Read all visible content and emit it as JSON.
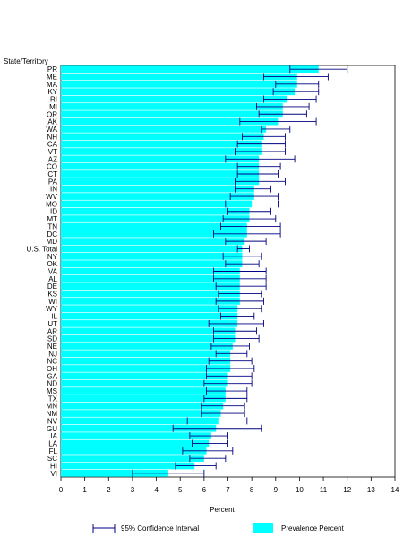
{
  "chart_data": {
    "type": "bar",
    "orientation": "horizontal",
    "category_axis_title": "State/Territory",
    "xlabel": "Percent",
    "xlim": [
      0,
      14
    ],
    "x_ticks": [
      "0",
      "1",
      "2",
      "3",
      "4",
      "5",
      "6",
      "7",
      "8",
      "9",
      "10",
      "11",
      "12",
      "13",
      "14"
    ],
    "bar_color": "#00ffff",
    "ci_color": "#000080",
    "legend": {
      "ci_label": "95% Confidence Interval",
      "bar_label": "Prevalence Percent",
      "placement": "bottom"
    },
    "categories": [
      "PR",
      "ME",
      "MA",
      "KY",
      "RI",
      "MI",
      "OR",
      "AK",
      "WA",
      "NH",
      "CA",
      "VT",
      "AZ",
      "CO",
      "CT",
      "PA",
      "IN",
      "WV",
      "MO",
      "ID",
      "MT",
      "TN",
      "DC",
      "MD",
      "U.S. Total",
      "NY",
      "OK",
      "VA",
      "AL",
      "DE",
      "KS",
      "WI",
      "WY",
      "IL",
      "UT",
      "AR",
      "SD",
      "NE",
      "NJ",
      "NC",
      "OH",
      "GA",
      "ND",
      "MS",
      "TX",
      "MN",
      "NM",
      "NV",
      "GU",
      "IA",
      "LA",
      "FL",
      "SC",
      "HI",
      "VI"
    ],
    "values": [
      10.8,
      9.9,
      9.9,
      9.8,
      9.5,
      9.3,
      9.3,
      9.1,
      8.6,
      8.5,
      8.4,
      8.4,
      8.3,
      8.3,
      8.3,
      8.3,
      8.1,
      8.1,
      8.0,
      7.9,
      7.9,
      7.8,
      7.8,
      7.7,
      7.6,
      7.6,
      7.6,
      7.5,
      7.5,
      7.5,
      7.5,
      7.5,
      7.4,
      7.4,
      7.4,
      7.3,
      7.3,
      7.2,
      7.1,
      7.1,
      7.1,
      7.0,
      7.0,
      6.9,
      6.9,
      6.8,
      6.7,
      6.6,
      6.5,
      6.3,
      6.2,
      6.1,
      6.0,
      5.6,
      4.5
    ],
    "ci_lower": [
      9.6,
      8.5,
      9.0,
      8.9,
      8.5,
      8.2,
      8.3,
      7.5,
      8.4,
      7.6,
      7.4,
      7.3,
      6.9,
      7.4,
      7.4,
      7.3,
      7.3,
      7.1,
      6.9,
      7.0,
      6.8,
      6.7,
      6.4,
      6.9,
      7.4,
      6.8,
      6.9,
      6.4,
      6.4,
      6.5,
      6.6,
      6.5,
      6.6,
      6.7,
      6.2,
      6.4,
      6.4,
      6.3,
      6.5,
      6.2,
      6.1,
      6.1,
      6.0,
      6.1,
      6.0,
      5.9,
      5.9,
      5.3,
      4.7,
      5.4,
      5.5,
      5.1,
      5.4,
      4.8,
      3.0
    ],
    "ci_upper": [
      12.0,
      11.2,
      10.8,
      10.8,
      10.7,
      10.4,
      10.3,
      10.7,
      9.6,
      9.4,
      9.4,
      9.4,
      9.8,
      9.2,
      9.1,
      9.4,
      8.8,
      9.1,
      9.1,
      8.8,
      9.0,
      9.2,
      9.2,
      8.6,
      7.9,
      8.4,
      8.3,
      8.6,
      8.6,
      8.6,
      8.4,
      8.5,
      8.4,
      8.1,
      8.5,
      8.2,
      8.3,
      7.9,
      7.8,
      8.0,
      8.1,
      8.0,
      8.0,
      7.8,
      7.8,
      7.7,
      7.7,
      7.8,
      8.4,
      7.0,
      7.0,
      7.2,
      6.9,
      6.5,
      6.0
    ]
  }
}
